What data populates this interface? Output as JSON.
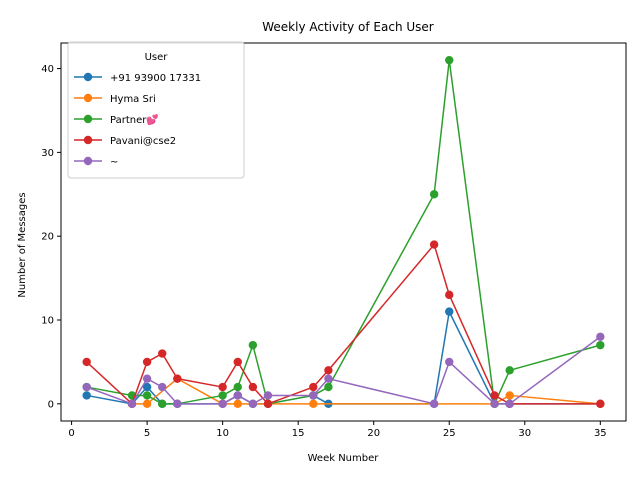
{
  "chart_data": {
    "type": "line",
    "title": "Weekly Activity of Each User",
    "xlabel": "Week Number",
    "ylabel": "Number of Messages",
    "xlim": [
      -0.7,
      36.7
    ],
    "ylim": [
      -2.05,
      43.05
    ],
    "xticks": [
      0,
      5,
      10,
      15,
      20,
      25,
      30,
      35
    ],
    "yticks": [
      0,
      10,
      20,
      30,
      40
    ],
    "grid": false,
    "legend": {
      "title": "User",
      "placement": "top-left"
    },
    "series": [
      {
        "name": "+91 93900 17331",
        "color": "#1f77b4",
        "x": [
          1,
          4,
          5,
          6,
          7,
          10,
          11,
          12,
          13,
          16,
          17,
          24,
          25,
          28,
          29,
          35
        ],
        "y": [
          1,
          0,
          2,
          0,
          0,
          0,
          1,
          0,
          0,
          1,
          0,
          0,
          11,
          0,
          0,
          0
        ]
      },
      {
        "name": "Hyma Sri",
        "color": "#ff7f0e",
        "x": [
          4,
          5,
          7,
          10,
          11,
          13,
          16,
          28,
          29,
          35
        ],
        "y": [
          0,
          0,
          3,
          0,
          0,
          0,
          0,
          0,
          1,
          0
        ]
      },
      {
        "name": "Partner💕",
        "color": "#2ca02c",
        "x": [
          1,
          4,
          5,
          6,
          7,
          10,
          11,
          12,
          13,
          16,
          17,
          24,
          25,
          28,
          29,
          35
        ],
        "y": [
          2,
          1,
          1,
          0,
          0,
          1,
          2,
          7,
          0,
          1,
          2,
          25,
          41,
          0,
          4,
          7
        ]
      },
      {
        "name": "Pavani@cse2",
        "color": "#d62728",
        "x": [
          1,
          4,
          5,
          6,
          7,
          10,
          11,
          12,
          13,
          16,
          17,
          24,
          25,
          28,
          29,
          35
        ],
        "y": [
          5,
          0,
          5,
          6,
          3,
          2,
          5,
          2,
          0,
          2,
          4,
          19,
          13,
          1,
          0,
          0
        ]
      },
      {
        "name": "~",
        "color": "#9467bd",
        "x": [
          1,
          4,
          5,
          6,
          7,
          10,
          11,
          12,
          13,
          16,
          17,
          24,
          25,
          28,
          29,
          35
        ],
        "y": [
          2,
          0,
          3,
          2,
          0,
          0,
          1,
          0,
          1,
          1,
          3,
          0,
          5,
          0,
          0,
          8
        ]
      }
    ]
  }
}
